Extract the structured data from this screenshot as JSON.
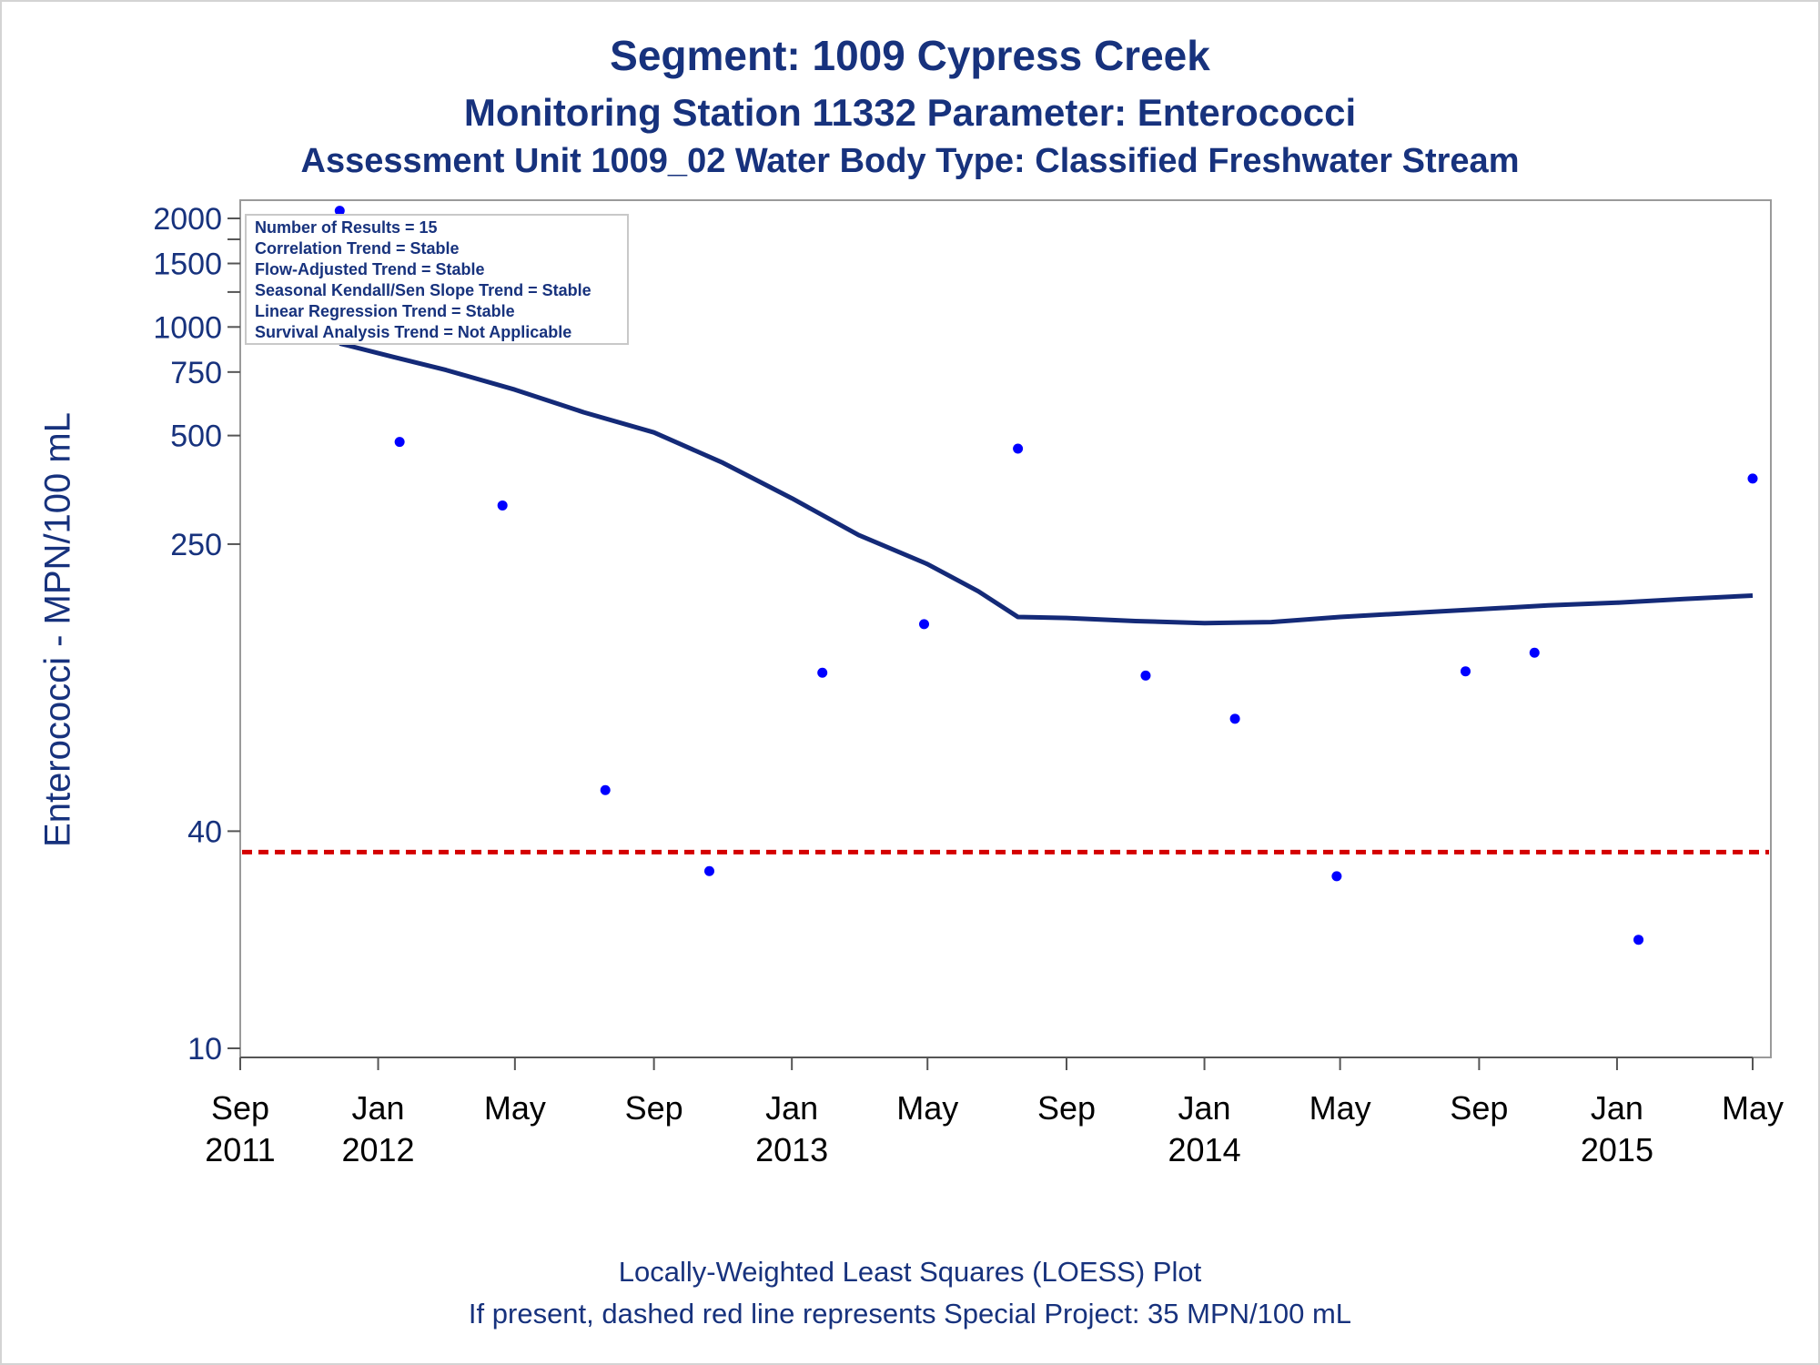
{
  "chart_data": {
    "type": "scatter",
    "title": "Segment: 1009  Cypress Creek",
    "subtitle": "Monitoring Station 11332 Parameter: Enterococci",
    "subtitle2": "Assessment Unit 1009_02   Water Body Type: Classified Freshwater Stream",
    "ylabel": "Enterococci - MPN/100 mL",
    "y_scale": "log",
    "ylim": [
      10,
      2000
    ],
    "yticks": [
      {
        "value": 10,
        "label": "10"
      },
      {
        "value": 40,
        "label": "40"
      },
      {
        "value": 250,
        "label": "250"
      },
      {
        "value": 500,
        "label": "500"
      },
      {
        "value": 750,
        "label": "750"
      },
      {
        "value": 1000,
        "label": "1000"
      },
      {
        "value": 1500,
        "label": "1500"
      },
      {
        "value": 2000,
        "label": "2000"
      }
    ],
    "yminor_ticks": [
      1250,
      1750
    ],
    "xlim": [
      "2011-09-01",
      "2015-05-01"
    ],
    "xticks": [
      {
        "date": "2011-09-01",
        "line1": "Sep",
        "line2": "2011"
      },
      {
        "date": "2012-01-01",
        "line1": "Jan",
        "line2": "2012"
      },
      {
        "date": "2012-05-01",
        "line1": "May",
        "line2": ""
      },
      {
        "date": "2012-09-01",
        "line1": "Sep",
        "line2": ""
      },
      {
        "date": "2013-01-01",
        "line1": "Jan",
        "line2": "2013"
      },
      {
        "date": "2013-05-01",
        "line1": "May",
        "line2": ""
      },
      {
        "date": "2013-09-01",
        "line1": "Sep",
        "line2": ""
      },
      {
        "date": "2014-01-01",
        "line1": "Jan",
        "line2": "2014"
      },
      {
        "date": "2014-05-01",
        "line1": "May",
        "line2": ""
      },
      {
        "date": "2014-09-01",
        "line1": "Sep",
        "line2": ""
      },
      {
        "date": "2015-01-01",
        "line1": "Jan",
        "line2": "2015"
      },
      {
        "date": "2015-05-01",
        "line1": "May",
        "line2": ""
      }
    ],
    "series": [
      {
        "kind": "points",
        "color": "#0000ff",
        "points": [
          {
            "x": "2011-11-28",
            "y": 2100
          },
          {
            "x": "2012-01-20",
            "y": 480
          },
          {
            "x": "2012-04-20",
            "y": 320
          },
          {
            "x": "2012-07-20",
            "y": 52
          },
          {
            "x": "2012-10-20",
            "y": 31
          },
          {
            "x": "2013-01-28",
            "y": 110
          },
          {
            "x": "2013-04-28",
            "y": 150
          },
          {
            "x": "2013-07-20",
            "y": 460
          },
          {
            "x": "2013-11-10",
            "y": 108
          },
          {
            "x": "2014-01-28",
            "y": 82
          },
          {
            "x": "2014-04-28",
            "y": 30
          },
          {
            "x": "2014-08-20",
            "y": 111
          },
          {
            "x": "2014-10-20",
            "y": 125
          },
          {
            "x": "2015-01-20",
            "y": 20
          },
          {
            "x": "2015-05-01",
            "y": 380
          }
        ]
      },
      {
        "kind": "line",
        "color": "#142a78",
        "points": [
          {
            "x": "2011-11-28",
            "y": 900
          },
          {
            "x": "2012-01-15",
            "y": 825
          },
          {
            "x": "2012-03-01",
            "y": 760
          },
          {
            "x": "2012-05-01",
            "y": 670
          },
          {
            "x": "2012-07-01",
            "y": 580
          },
          {
            "x": "2012-09-01",
            "y": 510
          },
          {
            "x": "2012-11-01",
            "y": 420
          },
          {
            "x": "2013-01-01",
            "y": 335
          },
          {
            "x": "2013-03-01",
            "y": 265
          },
          {
            "x": "2013-05-01",
            "y": 220
          },
          {
            "x": "2013-06-15",
            "y": 185
          },
          {
            "x": "2013-07-20",
            "y": 157
          },
          {
            "x": "2013-09-01",
            "y": 156
          },
          {
            "x": "2013-11-01",
            "y": 153
          },
          {
            "x": "2014-01-01",
            "y": 151
          },
          {
            "x": "2014-03-01",
            "y": 152
          },
          {
            "x": "2014-05-01",
            "y": 157
          },
          {
            "x": "2014-07-01",
            "y": 161
          },
          {
            "x": "2014-09-01",
            "y": 165
          },
          {
            "x": "2014-11-01",
            "y": 169
          },
          {
            "x": "2015-01-01",
            "y": 172
          },
          {
            "x": "2015-03-01",
            "y": 176
          },
          {
            "x": "2015-05-01",
            "y": 180
          }
        ]
      }
    ],
    "reference_line": {
      "y": 35,
      "color": "#d40000",
      "style": "dashed"
    },
    "legend_placement": "top-left",
    "legend_lines": [
      "Number of Results = 15",
      "Correlation Trend = Stable",
      "Flow-Adjusted Trend = Stable",
      "Seasonal Kendall/Sen Slope Trend = Stable",
      "Linear Regression Trend = Stable",
      "Survival Analysis Trend = Not Applicable"
    ],
    "grid": false
  },
  "footer": {
    "line1": "Locally-Weighted Least Squares (LOESS) Plot",
    "line2": "If present, dashed red line represents Special Project: 35 MPN/100 mL"
  }
}
